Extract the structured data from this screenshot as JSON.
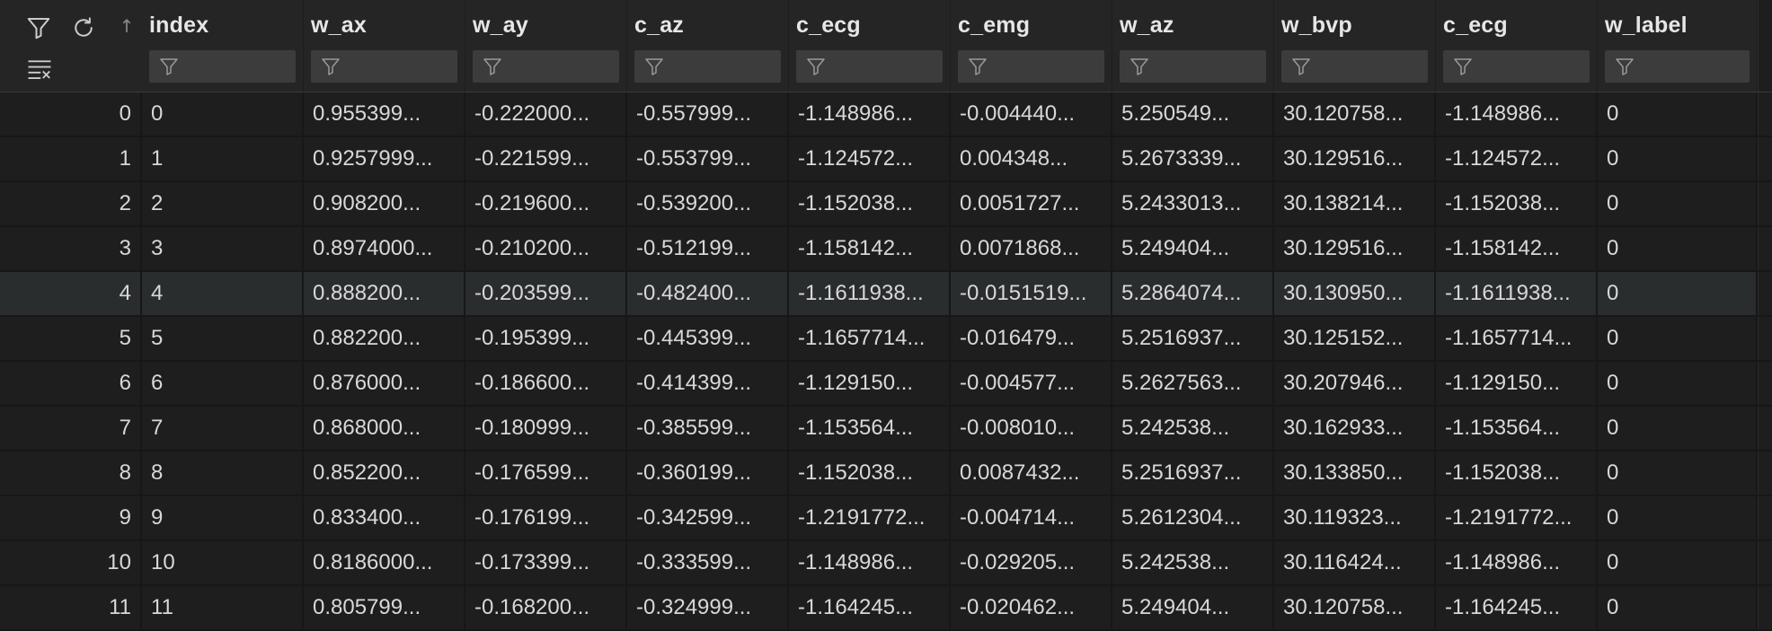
{
  "columns": [
    "index",
    "w_ax",
    "w_ay",
    "c_az",
    "c_ecg",
    "c_emg",
    "w_az",
    "w_bvp",
    "c_ecg",
    "w_label"
  ],
  "sort_indicator": "↑",
  "rows": [
    [
      "0",
      "0",
      "0.955399...",
      "-0.222000...",
      "-0.557999...",
      "-1.148986...",
      "-0.004440...",
      "5.250549...",
      "30.120758...",
      "-1.148986...",
      "0"
    ],
    [
      "1",
      "1",
      "0.9257999...",
      "-0.221599...",
      "-0.553799...",
      "-1.124572...",
      "0.004348...",
      "5.2673339...",
      "30.129516...",
      "-1.124572...",
      "0"
    ],
    [
      "2",
      "2",
      "0.908200...",
      "-0.219600...",
      "-0.539200...",
      "-1.152038...",
      "0.0051727...",
      "5.2433013...",
      "30.138214...",
      "-1.152038...",
      "0"
    ],
    [
      "3",
      "3",
      "0.8974000...",
      "-0.210200...",
      "-0.512199...",
      "-1.158142...",
      "0.0071868...",
      "5.249404...",
      "30.129516...",
      "-1.158142...",
      "0"
    ],
    [
      "4",
      "4",
      "0.888200...",
      "-0.203599...",
      "-0.482400...",
      "-1.1611938...",
      "-0.0151519...",
      "5.2864074...",
      "30.130950...",
      "-1.1611938...",
      "0"
    ],
    [
      "5",
      "5",
      "0.882200...",
      "-0.195399...",
      "-0.445399...",
      "-1.1657714...",
      "-0.016479...",
      "5.2516937...",
      "30.125152...",
      "-1.1657714...",
      "0"
    ],
    [
      "6",
      "6",
      "0.876000...",
      "-0.186600...",
      "-0.414399...",
      "-1.129150...",
      "-0.004577...",
      "5.2627563...",
      "30.207946...",
      "-1.129150...",
      "0"
    ],
    [
      "7",
      "7",
      "0.868000...",
      "-0.180999...",
      "-0.385599...",
      "-1.153564...",
      "-0.008010...",
      "5.242538...",
      "30.162933...",
      "-1.153564...",
      "0"
    ],
    [
      "8",
      "8",
      "0.852200...",
      "-0.176599...",
      "-0.360199...",
      "-1.152038...",
      "0.0087432...",
      "5.2516937...",
      "30.133850...",
      "-1.152038...",
      "0"
    ],
    [
      "9",
      "9",
      "0.833400...",
      "-0.176199...",
      "-0.342599...",
      "-1.2191772...",
      "-0.004714...",
      "5.2612304...",
      "30.119323...",
      "-1.2191772...",
      "0"
    ],
    [
      "10",
      "10",
      "0.8186000...",
      "-0.173399...",
      "-0.333599...",
      "-1.148986...",
      "-0.029205...",
      "5.242538...",
      "30.116424...",
      "-1.148986...",
      "0"
    ],
    [
      "11",
      "11",
      "0.805799...",
      "-0.168200...",
      "-0.324999...",
      "-1.164245...",
      "-0.020462...",
      "5.249404...",
      "30.120758...",
      "-1.164245...",
      "0"
    ]
  ],
  "highlighted_row": 4,
  "icons": {
    "filter": "filter-icon",
    "refresh": "refresh-icon",
    "clear_filters": "clear-filters-icon",
    "sort": "sort-ascending-icon"
  }
}
